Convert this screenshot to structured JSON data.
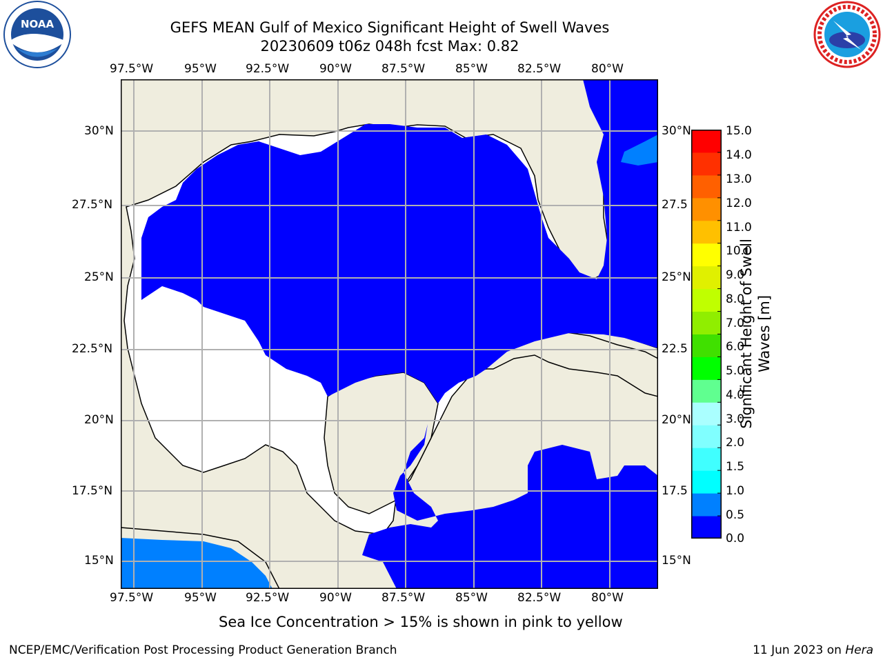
{
  "title": {
    "line1": "GEFS MEAN Gulf of Mexico Significant Height of Swell Waves",
    "line2": "20230609 t06z 048h fcst   Max: 0.82"
  },
  "logos": {
    "noaa": {
      "text": "NOAA",
      "icon": "noaa-logo"
    },
    "nws": {
      "icon": "nws-logo"
    }
  },
  "axes": {
    "lon_labels": [
      "97.5°W",
      "95°W",
      "92.5°W",
      "90°W",
      "87.5°W",
      "85°W",
      "82.5°W",
      "80°W"
    ],
    "lat_labels_left": [
      "30°N",
      "27.5°N",
      "25°N",
      "22.5°N",
      "20°N",
      "17.5°N",
      "15°N"
    ],
    "lat_labels_right": [
      "30°N",
      "27.5",
      "25°N",
      "22.5",
      "20°N",
      "17.5",
      "15°N"
    ]
  },
  "colorbar": {
    "label": "Significant Height of Swell Waves [m]",
    "label_line1": "Significant Height of Swell",
    "label_line2": "Waves [m]",
    "ticks": [
      "15.0",
      "14.0",
      "13.0",
      "12.0",
      "11.0",
      "10.0",
      "9.0",
      "8.0",
      "7.0",
      "6.0",
      "5.0",
      "4.0",
      "3.0",
      "2.0",
      "1.5",
      "1.0",
      "0.5",
      "0.0"
    ],
    "colors_bottom_to_top": [
      "#0000ff",
      "#0080ff",
      "#00ffff",
      "#40ffff",
      "#80ffff",
      "#aaffff",
      "#60ff90",
      "#00ff00",
      "#40e000",
      "#90ee00",
      "#c0ff00",
      "#e0f000",
      "#ffff00",
      "#ffc000",
      "#ff9000",
      "#ff6000",
      "#ff3000",
      "#ff0000"
    ]
  },
  "colors": {
    "land": "#efedde",
    "ocean_swell_low": "#0000ff",
    "ocean_swell_mid": "#0080ff",
    "no_data": "#ffffff",
    "grid": "#b0b0b0"
  },
  "note": "Sea Ice Concentration > 15% is shown in pink to yellow",
  "footer": {
    "left": "NCEP/EMC/Verification Post Processing Product Generation Branch",
    "date": "11 Jun 2023 on ",
    "machine": "Hera"
  }
}
